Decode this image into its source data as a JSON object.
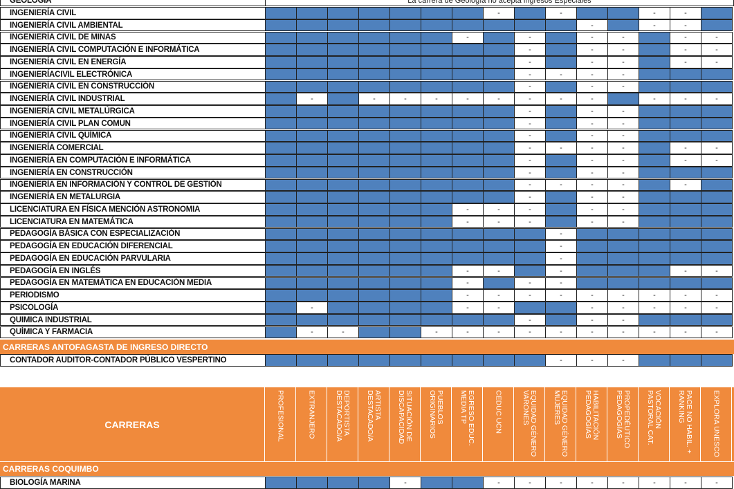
{
  "top_row": {
    "label": "GEOLOGÍA",
    "notice": "La carrera de Geología no acepta ingresos Especiales"
  },
  "rows": [
    {
      "label": "INGENIERÍA CIVIL",
      "cells": "FFFFFFF-F-FF--FFF-"
    },
    {
      "label": "INGENIERÍA CIVIL AMBIENTAL",
      "cells": "FFFFFFFFFF-F--FFF-"
    },
    {
      "label": "INGENIERÍA CIVIL DE MINAS",
      "cells": "FFFFFF-F-F--F--F-"
    },
    {
      "label": "INGENIERÍA CIVIL COMPUTACIÓN E INFORMÁTICA",
      "cells": "FFFFFFFF-F--F--F-"
    },
    {
      "label": "INGENIERÍA CIVIL EN ENERGÍA",
      "cells": "FFFFFFFF-F--F--F-"
    },
    {
      "label": "INGENIERÍACIVIL ELECTRÓNICA",
      "cells": "FFFFFFFF----FFF-"
    },
    {
      "label": "INGENIERÍA CIVIL EN CONSTRUCCIÓN",
      "cells": "FFFFFFFF-F--FFFF"
    },
    {
      "label": "INGENIERÍA CIVIL INDUSTRIAL",
      "cells": "F-F--------F-----"
    },
    {
      "label": "INGENIERÍA CIVIL METALÚRGICA",
      "cells": "FFFFFFFF-F--FFF-"
    },
    {
      "label": "INGENIERÍA CIVIL PLAN COMUN",
      "cells": "FFFFFFFF-F--FFFF"
    },
    {
      "label": "INGENIERÍA CIVIL QUÍMICA",
      "cells": "FFFFFFFF-F--FFF-"
    },
    {
      "label": "INGENIERÍA COMERCIAL",
      "cells": "FFFFFFFF----F--F-"
    },
    {
      "label": "INGENIERÍA EN COMPUTACIÓN E INFORMÁTICA",
      "cells": "FFFFFFFF-F--F--F-"
    },
    {
      "label": "INGENIERÍA EN CONSTRUCCIÓN",
      "cells": "FFFFFFFF-F--FFF-"
    },
    {
      "label": "INGENIERÍA EN INFORMACIÓN Y CONTROL DE GESTIÓN",
      "cells": "FFFFFFFF----F-F-"
    },
    {
      "label": "INGENIERÍA EN METALURGIA",
      "cells": "FFFFFFFF-F--FFF-"
    },
    {
      "label": "LICENCIATURA EN FÍSICA MENCIÓN ASTRONOMIA",
      "cells": "FFFFFF---F--FFFF"
    },
    {
      "label": "LICENCIATURA EN MATEMÁTICA",
      "cells": "FFFFFF---F--FFFF"
    },
    {
      "label": "PEDAGOGÍA BÁSICA CON ESPECIALIZACIÓN",
      "cells": "FFFFFFFFF-FFFFF-"
    },
    {
      "label": "PEDAGOGÍA EN EDUCACIÓN DIFERENCIAL",
      "cells": "FFFFFFFFF-FFFFF-"
    },
    {
      "label": "PEDAGOGÍA EN EDUCACIÓN PARVULARIA",
      "cells": "FFFFFFFFF-FFFFF-"
    },
    {
      "label": "PEDAGOGÍA EN INGLÉS",
      "cells": "FFFFFF--F-FFF--"
    },
    {
      "label": "PEDAGOGÍA EN MATEMÁTICA EN EDUCACIÓN MEDIA",
      "cells": "FFFFFF-F--FFFFF-"
    },
    {
      "label": "PERIODISMO",
      "cells": "FFFFFF----------FFF-"
    },
    {
      "label": "PSICOLOGÍA",
      "cells": "F-FFFF--FF-----F--"
    },
    {
      "label": "QUIMICA INDUSTRIAL",
      "cells": "FFFFFFFF-F--FFFF"
    },
    {
      "label": "QUÍMICA Y FARMACIA",
      "cells": "F--FF-----------F---"
    }
  ],
  "section_antofagasta": "CARRERAS ANTOFAGASTA DE INGRESO DIRECTO",
  "direct_row": {
    "label": "CONTADOR AUDITOR-CONTADOR PÚBLICO  VESPERTINO",
    "cells": "FFFFFFFFF---FFF-"
  },
  "header": {
    "title": "CARRERAS",
    "columns": [
      "PROFESIONAL",
      "EXTRANJERO",
      "DEPORTISTA\nDESTACADO/A",
      "ARTISTA\nDESTACADO/A",
      "SITUACIÓN DE\nDISCAPACIDAD",
      "PUEBLOS\nORIGINARIOS",
      "EGRESO EDUC.\nMEDIA TP",
      "CEDUC UCN",
      "EQUIDAD GÉNERO\nVARONES",
      "EQUIDAD GÉNERO\nMUJERES",
      "HABILITACIÓN\nPEDAGOGÍAS",
      "PROPEDÉUTICO\nPEDAGOGÍAS",
      "VOCACIÓN\nPASTORAL CAT.",
      "PACE NO HABIL. +\nRANKING",
      "EXPLORA UNESCO"
    ]
  },
  "section_coquimbo": "CARRERAS COQUIMBO",
  "last_row": {
    "label": "BIOLOGÍA MARINA",
    "cells": "FFFF-FF--------F-F-"
  },
  "colors": {
    "blue": "#4f81bd",
    "orange": "#f08a3c"
  }
}
